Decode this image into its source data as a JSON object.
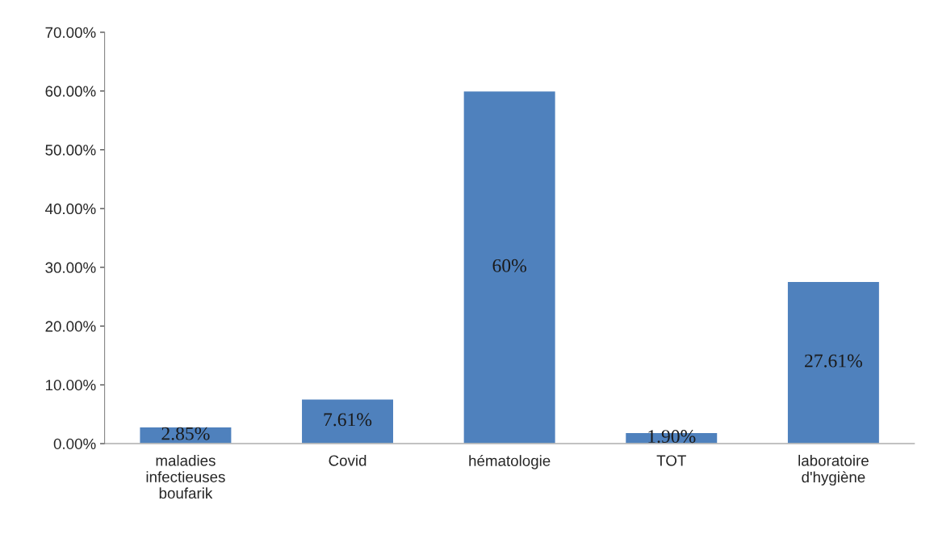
{
  "chart_data": {
    "type": "bar",
    "categories": [
      "maladies\ninfectieuses\nboufarik",
      "Covid",
      "hématologie",
      "TOT",
      "laboratoire\nd'hygiène"
    ],
    "values": [
      2.85,
      7.61,
      60,
      1.9,
      27.61
    ],
    "value_labels": [
      "2.85%",
      "7.61%",
      "60%",
      "1.90%",
      "27.61%"
    ],
    "color": "#4f81bd",
    "ylim": [
      0,
      70
    ],
    "yticks": [
      {
        "value": 0,
        "label": "0.00%"
      },
      {
        "value": 10,
        "label": "10.00%"
      },
      {
        "value": 20,
        "label": "20.00%"
      },
      {
        "value": 30,
        "label": "30.00%"
      },
      {
        "value": 40,
        "label": "40.00%"
      },
      {
        "value": 50,
        "label": "50.00%"
      },
      {
        "value": 60,
        "label": "60.00%"
      },
      {
        "value": 70,
        "label": "70.00%"
      }
    ],
    "grid": false,
    "legend": false
  }
}
